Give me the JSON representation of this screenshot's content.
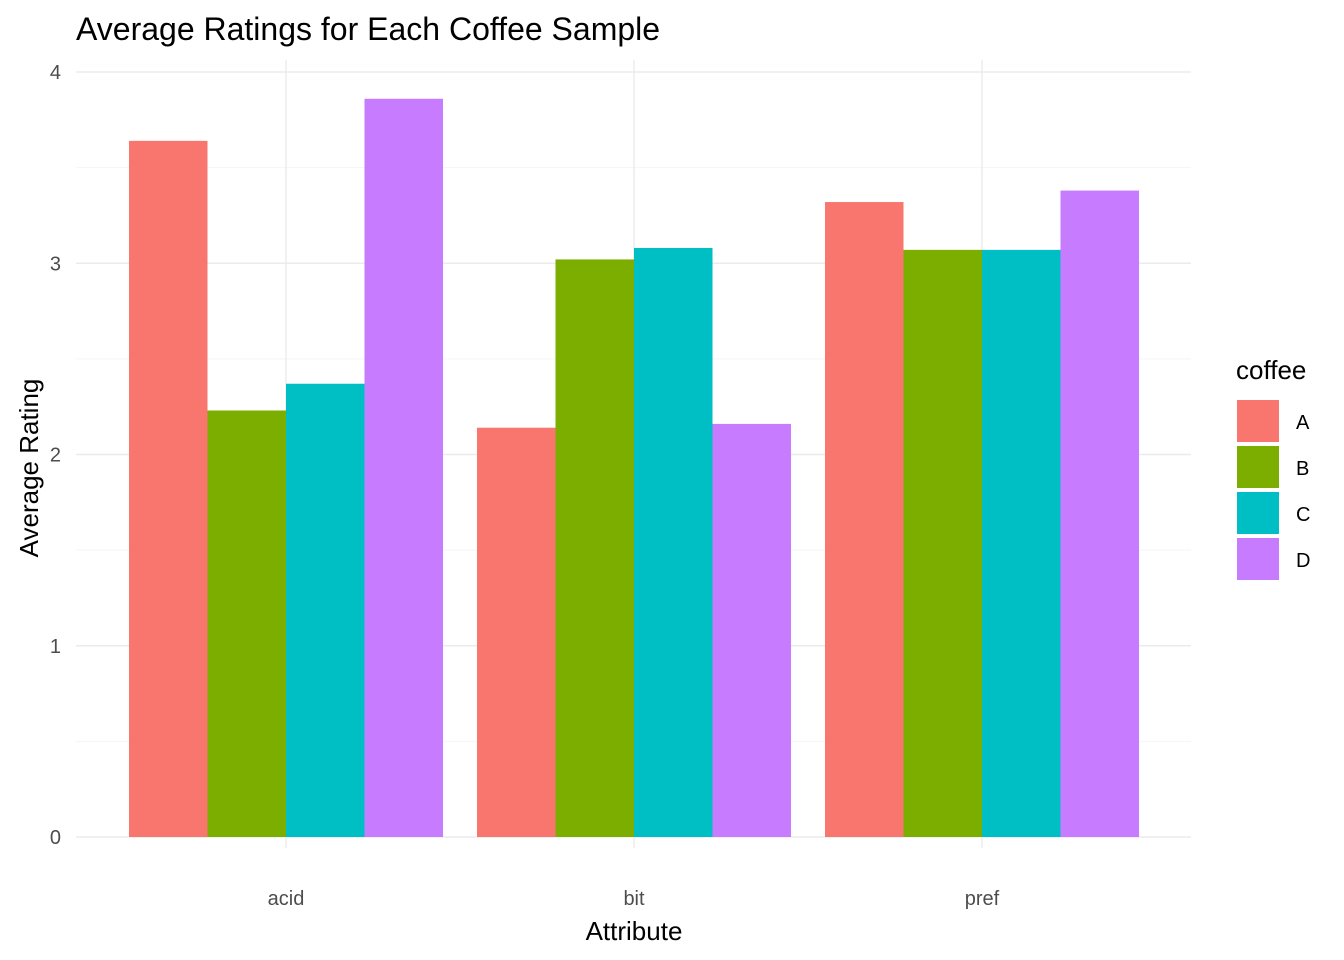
{
  "chart_data": {
    "type": "bar",
    "title": "Average Ratings for Each Coffee Sample",
    "xlabel": "Attribute",
    "ylabel": "Average Rating",
    "categories": [
      "acid",
      "bit",
      "pref"
    ],
    "series": [
      {
        "name": "A",
        "color": "#F8766D",
        "values": [
          3.64,
          2.14,
          3.32
        ]
      },
      {
        "name": "B",
        "color": "#7CAE00",
        "values": [
          2.23,
          3.02,
          3.07
        ]
      },
      {
        "name": "C",
        "color": "#00BFC4",
        "values": [
          2.37,
          3.08,
          3.07
        ]
      },
      {
        "name": "D",
        "color": "#C77CFF",
        "values": [
          3.86,
          2.16,
          3.38
        ]
      }
    ],
    "ylim": [
      0,
      4
    ],
    "yticks": [
      "0",
      "1",
      "2",
      "3",
      "4"
    ],
    "grid": true,
    "legend": {
      "title": "coffee",
      "placement": "right"
    }
  }
}
